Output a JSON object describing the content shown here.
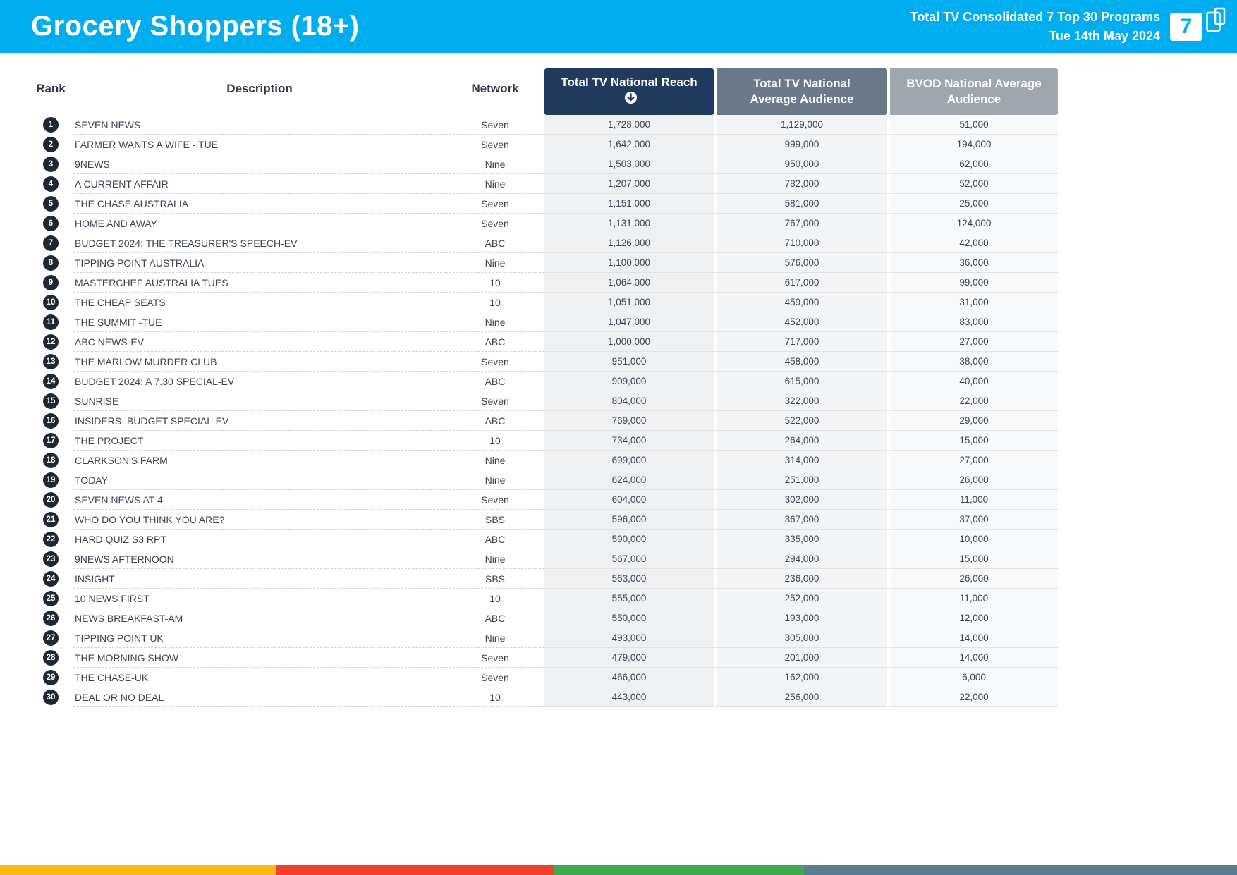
{
  "header": {
    "title": "Grocery Shoppers (18+)",
    "report_line": "Total TV Consolidated 7 Top 30 Programs",
    "date_line": "Tue 14th May 2024",
    "logo_text": "7"
  },
  "colors": {
    "topbar": "#00AEEF",
    "reach_header": "#223A5E",
    "avg_header": "#6B7988",
    "bvod_header": "#9FA6AE",
    "rank_badge": "#1F2733"
  },
  "chart_data": {
    "type": "table",
    "title": "Grocery Shoppers (18+)",
    "subtitle": "Total TV Consolidated 7 Top 30 Programs — Tue 14th May 2024",
    "sorted_by": "Total TV National Reach (descending)",
    "columns": [
      "Rank",
      "Description",
      "Network",
      "Total TV National Reach",
      "Total TV National Average Audience",
      "BVOD National Average Audience"
    ],
    "rows": [
      [
        1,
        "SEVEN NEWS",
        "Seven",
        1728000,
        1129000,
        51000
      ],
      [
        2,
        "FARMER WANTS A WIFE - TUE",
        "Seven",
        1642000,
        999000,
        194000
      ],
      [
        3,
        "9NEWS",
        "Nine",
        1503000,
        950000,
        62000
      ],
      [
        4,
        "A CURRENT AFFAIR",
        "Nine",
        1207000,
        782000,
        52000
      ],
      [
        5,
        "THE CHASE AUSTRALIA",
        "Seven",
        1151000,
        581000,
        25000
      ],
      [
        6,
        "HOME AND AWAY",
        "Seven",
        1131000,
        767000,
        124000
      ],
      [
        7,
        "BUDGET 2024: THE TREASURER'S SPEECH-EV",
        "ABC",
        1126000,
        710000,
        42000
      ],
      [
        8,
        "TIPPING POINT AUSTRALIA",
        "Nine",
        1100000,
        576000,
        36000
      ],
      [
        9,
        "MASTERCHEF AUSTRALIA TUES",
        "10",
        1064000,
        617000,
        99000
      ],
      [
        10,
        "THE CHEAP SEATS",
        "10",
        1051000,
        459000,
        31000
      ],
      [
        11,
        "THE SUMMIT -TUE",
        "Nine",
        1047000,
        452000,
        83000
      ],
      [
        12,
        "ABC NEWS-EV",
        "ABC",
        1000000,
        717000,
        27000
      ],
      [
        13,
        "THE MARLOW MURDER CLUB",
        "Seven",
        951000,
        458000,
        38000
      ],
      [
        14,
        "BUDGET 2024: A 7.30 SPECIAL-EV",
        "ABC",
        909000,
        615000,
        40000
      ],
      [
        15,
        "SUNRISE",
        "Seven",
        804000,
        322000,
        22000
      ],
      [
        16,
        "INSIDERS: BUDGET SPECIAL-EV",
        "ABC",
        769000,
        522000,
        29000
      ],
      [
        17,
        "THE PROJECT",
        "10",
        734000,
        264000,
        15000
      ],
      [
        18,
        "CLARKSON'S FARM",
        "Nine",
        699000,
        314000,
        27000
      ],
      [
        19,
        "TODAY",
        "Nine",
        624000,
        251000,
        26000
      ],
      [
        20,
        "SEVEN NEWS AT 4",
        "Seven",
        604000,
        302000,
        11000
      ],
      [
        21,
        "WHO DO YOU THINK YOU ARE?",
        "SBS",
        596000,
        367000,
        37000
      ],
      [
        22,
        "HARD QUIZ S3 RPT",
        "ABC",
        590000,
        335000,
        10000
      ],
      [
        23,
        "9NEWS AFTERNOON",
        "Nine",
        567000,
        294000,
        15000
      ],
      [
        24,
        "INSIGHT",
        "SBS",
        563000,
        236000,
        26000
      ],
      [
        25,
        "10 NEWS FIRST",
        "10",
        555000,
        252000,
        11000
      ],
      [
        26,
        "NEWS BREAKFAST-AM",
        "ABC",
        550000,
        193000,
        12000
      ],
      [
        27,
        "TIPPING POINT UK",
        "Nine",
        493000,
        305000,
        14000
      ],
      [
        28,
        "THE MORNING SHOW",
        "Seven",
        479000,
        201000,
        14000
      ],
      [
        29,
        "THE CHASE-UK",
        "Seven",
        466000,
        162000,
        6000
      ],
      [
        30,
        "DEAL OR NO DEAL",
        "10",
        443000,
        256000,
        22000
      ]
    ]
  },
  "footer": {
    "segments": [
      {
        "name": "yellow",
        "color": "#FDB913",
        "width_pct": 22.3
      },
      {
        "name": "red",
        "color": "#EF4130",
        "width_pct": 22.5
      },
      {
        "name": "green",
        "color": "#3FA94E",
        "width_pct": 20.2
      },
      {
        "name": "slate",
        "color": "#5B7E8F",
        "width_pct": 35.0
      }
    ]
  }
}
